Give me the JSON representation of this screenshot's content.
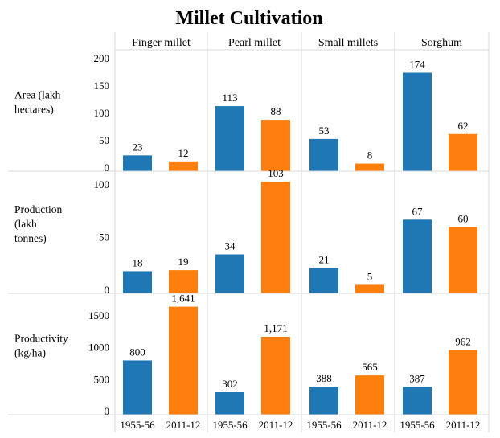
{
  "chart_data": {
    "type": "bar",
    "title": "Millet Cultivation",
    "panels": [
      "Finger millet",
      "Pearl millet",
      "Small millets",
      "Sorghum"
    ],
    "categories": [
      "1955-56",
      "2011-12"
    ],
    "colors": {
      "1955-56": "#1f77b4",
      "2011-12": "#ff7f0e"
    },
    "rows": [
      {
        "label": [
          "Area (lakh",
          "hectares)"
        ],
        "ylim": [
          0,
          210
        ],
        "ticks": [
          0,
          50,
          100,
          150,
          200
        ],
        "tick_labels": [
          "0",
          "50",
          "100",
          "150",
          "200"
        ],
        "values": [
          [
            23,
            12
          ],
          [
            113,
            88
          ],
          [
            53,
            8
          ],
          [
            174,
            62
          ]
        ],
        "value_labels": [
          [
            "23",
            "12"
          ],
          [
            "113",
            "88"
          ],
          [
            "53",
            "8"
          ],
          [
            "174",
            "62"
          ]
        ]
      },
      {
        "label": [
          "Production",
          "(lakh",
          "tonnes)"
        ],
        "ylim": [
          0,
          110
        ],
        "ticks": [
          0,
          50,
          100
        ],
        "tick_labels": [
          "0",
          "50",
          "100"
        ],
        "values": [
          [
            18,
            19
          ],
          [
            34,
            103
          ],
          [
            21,
            5
          ],
          [
            67,
            60
          ]
        ],
        "value_labels": [
          [
            "18",
            "19"
          ],
          [
            "34",
            "103"
          ],
          [
            "21",
            "5"
          ],
          [
            "67",
            "60"
          ]
        ]
      },
      {
        "label": [
          "Productivity",
          "(kg/ha)"
        ],
        "ylim": [
          0,
          1800
        ],
        "ticks": [
          0,
          500,
          1000,
          1500
        ],
        "tick_labels": [
          "0",
          "500",
          "1000",
          "1500"
        ],
        "values": [
          [
            800,
            1641
          ],
          [
            302,
            1171
          ],
          [
            388,
            565
          ],
          [
            387,
            962
          ]
        ],
        "value_labels": [
          [
            "800",
            "1,641"
          ],
          [
            "302",
            "1,171"
          ],
          [
            "388",
            "565"
          ],
          [
            "387",
            "962"
          ]
        ]
      }
    ]
  }
}
